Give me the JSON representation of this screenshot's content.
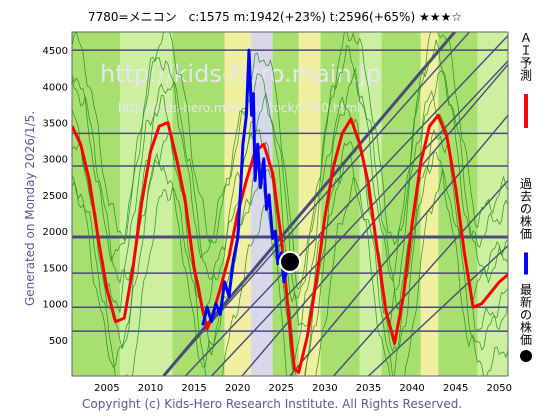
{
  "title": "7780=メニコン　c:1575  m:1942(+23%)  t:2596(+65%)  ★★★☆",
  "generated_label": "Generated on Monday 2026/1/5.",
  "copyright": "Copyright (c) Kids-Hero Research Institute. All Rights Reserved.",
  "watermark_main": "http://kids-hero.main.jp",
  "watermark_sub": "http://kids-hero.main.jp/stock/7780.html",
  "legend": [
    {
      "label": "ＡＩ予測",
      "color": "#ff0000",
      "marker": "line"
    },
    {
      "label": "過去の株価",
      "color": "#0000ff",
      "marker": "line"
    },
    {
      "label": "最新の株価",
      "color": "#000000",
      "marker": "circle"
    }
  ],
  "colors": {
    "plot_bg": "#ffffff",
    "band_green": "#a8e070",
    "band_light_green": "#ccf0a0",
    "band_yellow": "#f0f0a0",
    "band_grey": "#d8d8e8",
    "grid_line": "#4a4a7a",
    "ai_line": "#ff0000",
    "past_line": "#0000ff",
    "thin_green": "#228b22",
    "latest_dot": "#000000"
  },
  "chart_data": {
    "type": "line",
    "xlim": [
      2001,
      2051
    ],
    "ylim": [
      0,
      4750
    ],
    "x_ticks": [
      2005,
      2010,
      2015,
      2020,
      2025,
      2030,
      2035,
      2040,
      2045,
      2050
    ],
    "y_ticks": [
      500,
      1000,
      1500,
      2000,
      2500,
      3000,
      3500,
      4000,
      4500
    ],
    "horizontal_levels": [
      {
        "y": 4500,
        "weight": "normal"
      },
      {
        "y": 3350,
        "weight": "normal"
      },
      {
        "y": 2900,
        "weight": "normal"
      },
      {
        "y": 1920,
        "weight": "bold"
      },
      {
        "y": 1420,
        "weight": "normal"
      },
      {
        "y": 950,
        "weight": "normal"
      },
      {
        "y": 620,
        "weight": "normal"
      }
    ],
    "diagonal_lines": [
      {
        "x": [
          2011.5,
          2051
        ],
        "y": [
          0,
          5350
        ],
        "weight": "normal"
      },
      {
        "x": [
          2011.5,
          2051
        ],
        "y": [
          0,
          5620
        ],
        "weight": "bold"
      },
      {
        "x": [
          2014.0,
          2051
        ],
        "y": [
          0,
          4700
        ],
        "weight": "normal"
      },
      {
        "x": [
          2017.0,
          2051
        ],
        "y": [
          0,
          4350
        ],
        "weight": "normal"
      },
      {
        "x": [
          2020.5,
          2051
        ],
        "y": [
          0,
          4300
        ],
        "weight": "normal"
      },
      {
        "x": [
          2026.0,
          2051
        ],
        "y": [
          0,
          3600
        ],
        "weight": "normal"
      },
      {
        "x": [
          2031.0,
          2051
        ],
        "y": [
          0,
          2700
        ],
        "weight": "normal"
      },
      {
        "x": [
          2035.0,
          2051
        ],
        "y": [
          0,
          1800
        ],
        "weight": "normal"
      }
    ],
    "bands": [
      {
        "x0": 2001.0,
        "x1": 2006.5,
        "kind": "green"
      },
      {
        "x0": 2006.5,
        "x1": 2012.5,
        "kind": "light_green"
      },
      {
        "x0": 2012.5,
        "x1": 2018.5,
        "kind": "green"
      },
      {
        "x0": 2018.5,
        "x1": 2021.5,
        "kind": "yellow"
      },
      {
        "x0": 2021.5,
        "x1": 2024.0,
        "kind": "grey"
      },
      {
        "x0": 2024.0,
        "x1": 2027.0,
        "kind": "green"
      },
      {
        "x0": 2027.0,
        "x1": 2029.5,
        "kind": "yellow"
      },
      {
        "x0": 2029.5,
        "x1": 2034.0,
        "kind": "green"
      },
      {
        "x0": 2034.0,
        "x1": 2036.5,
        "kind": "light_green"
      },
      {
        "x0": 2036.5,
        "x1": 2041.0,
        "kind": "green"
      },
      {
        "x0": 2041.0,
        "x1": 2043.0,
        "kind": "yellow"
      },
      {
        "x0": 2043.0,
        "x1": 2047.5,
        "kind": "green"
      },
      {
        "x0": 2047.5,
        "x1": 2051.0,
        "kind": "light_green"
      }
    ],
    "series": [
      {
        "name": "ＡＩ予測",
        "color": "#ff0000",
        "x": [
          2001.0,
          2002.0,
          2003.0,
          2004.0,
          2005.0,
          2006.0,
          2007.0,
          2008.0,
          2009.0,
          2010.0,
          2011.0,
          2012.0,
          2013.0,
          2014.0,
          2015.0,
          2016.0,
          2016.5,
          2017.0,
          2018.0,
          2019.0,
          2020.0,
          2021.0,
          2022.0,
          2023.0,
          2024.0,
          2025.0,
          2026.0,
          2026.5,
          2027.0,
          2028.0,
          2029.0,
          2030.0,
          2031.0,
          2032.0,
          2033.0,
          2034.0,
          2035.0,
          2036.0,
          2037.0,
          2038.0,
          2039.0,
          2040.0,
          2041.0,
          2042.0,
          2043.0,
          2044.0,
          2045.0,
          2046.0,
          2047.0,
          2048.0,
          2049.0,
          2050.0,
          2051.0
        ],
        "y": [
          3450,
          3200,
          2700,
          1900,
          1200,
          750,
          800,
          1500,
          2400,
          3100,
          3450,
          3500,
          3000,
          2400,
          1500,
          900,
          650,
          800,
          1200,
          1650,
          2250,
          2700,
          3100,
          3200,
          2800,
          1900,
          650,
          100,
          50,
          550,
          1300,
          2200,
          2900,
          3350,
          3550,
          3200,
          2650,
          1750,
          900,
          450,
          1100,
          2100,
          2950,
          3450,
          3600,
          3300,
          2600,
          1700,
          950,
          1000,
          1150,
          1300,
          1400
        ]
      },
      {
        "name": "過去の株価",
        "color": "#0000ff",
        "x": [
          2016.0,
          2016.5,
          2017.0,
          2017.5,
          2018.0,
          2018.5,
          2019.0,
          2019.5,
          2020.0,
          2020.3,
          2020.6,
          2021.0,
          2021.3,
          2021.6,
          2021.8,
          2022.0,
          2022.3,
          2022.6,
          2023.0,
          2023.3,
          2023.6,
          2024.0,
          2024.3,
          2024.6,
          2025.0,
          2025.3,
          2025.6,
          2026.0
        ],
        "y": [
          700,
          950,
          750,
          1000,
          850,
          1300,
          1100,
          1600,
          1900,
          2500,
          3200,
          3600,
          4500,
          3600,
          3900,
          2700,
          3200,
          2600,
          3000,
          2300,
          2500,
          1900,
          2000,
          1550,
          1700,
          1300,
          1450,
          1575
        ]
      }
    ],
    "latest_point": {
      "x": 2026.0,
      "y": 1575
    }
  }
}
